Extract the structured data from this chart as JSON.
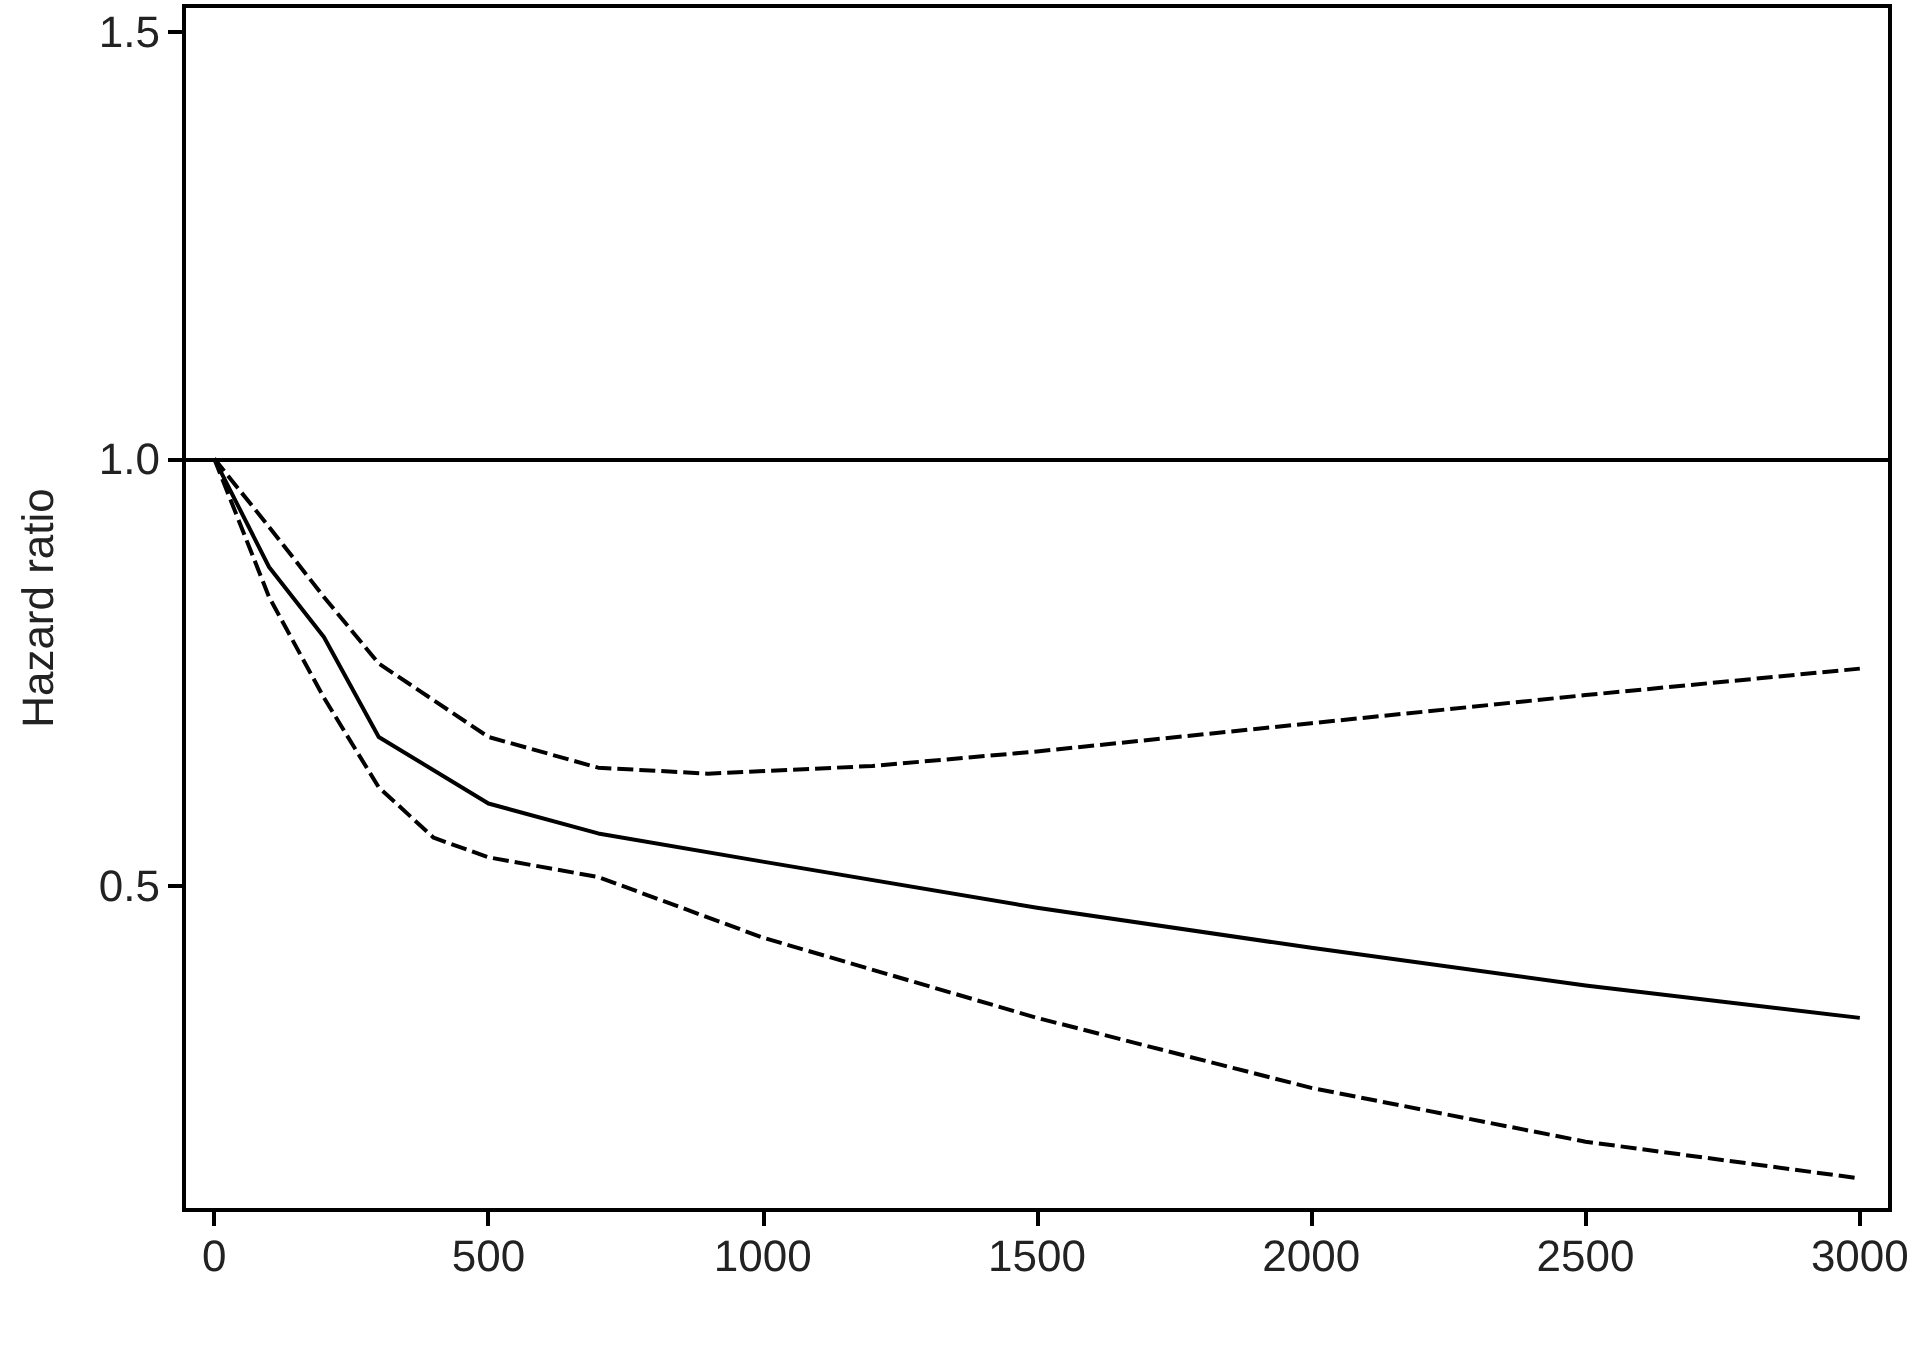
{
  "chart_data": {
    "type": "line",
    "ylabel": "Hazard ratio",
    "xlim": [
      -55,
      3055
    ],
    "xticks": [
      0,
      500,
      1000,
      1500,
      2000,
      2500,
      3000
    ],
    "ylim": [
      0.12,
      1.53
    ],
    "yticks": [
      {
        "value": 0.5,
        "label": "0.5"
      },
      {
        "value": 1.0,
        "label": "1.0"
      },
      {
        "value": 1.5,
        "label": "1.5"
      }
    ],
    "grid": false,
    "marker": "none",
    "ref_lines": [
      {
        "axis": "y",
        "value": 1.0,
        "color": "#000000",
        "line_style": "solid"
      }
    ],
    "series": [
      {
        "color": "#000000",
        "line_style": "solid",
        "x": [
          0,
          100,
          200,
          300,
          500,
          700,
          1000,
          1500,
          2000,
          2500,
          3000
        ],
        "values": [
          1.0,
          0.873,
          0.791,
          0.674,
          0.596,
          0.561,
          0.528,
          0.474,
          0.427,
          0.383,
          0.345
        ]
      },
      {
        "color": "#000000",
        "line_style": "dashed",
        "x": [
          0,
          100,
          200,
          300,
          500,
          700,
          900,
          1200,
          1500,
          2000,
          2500,
          3000
        ],
        "values": [
          1.0,
          0.92,
          0.838,
          0.76,
          0.674,
          0.638,
          0.631,
          0.64,
          0.657,
          0.69,
          0.723,
          0.754
        ]
      },
      {
        "color": "#000000",
        "line_style": "dashed",
        "x": [
          0,
          100,
          200,
          300,
          400,
          500,
          700,
          1000,
          1500,
          2000,
          2500,
          3000
        ],
        "values": [
          1.0,
          0.838,
          0.72,
          0.615,
          0.556,
          0.533,
          0.51,
          0.439,
          0.345,
          0.263,
          0.2,
          0.157
        ]
      }
    ]
  }
}
